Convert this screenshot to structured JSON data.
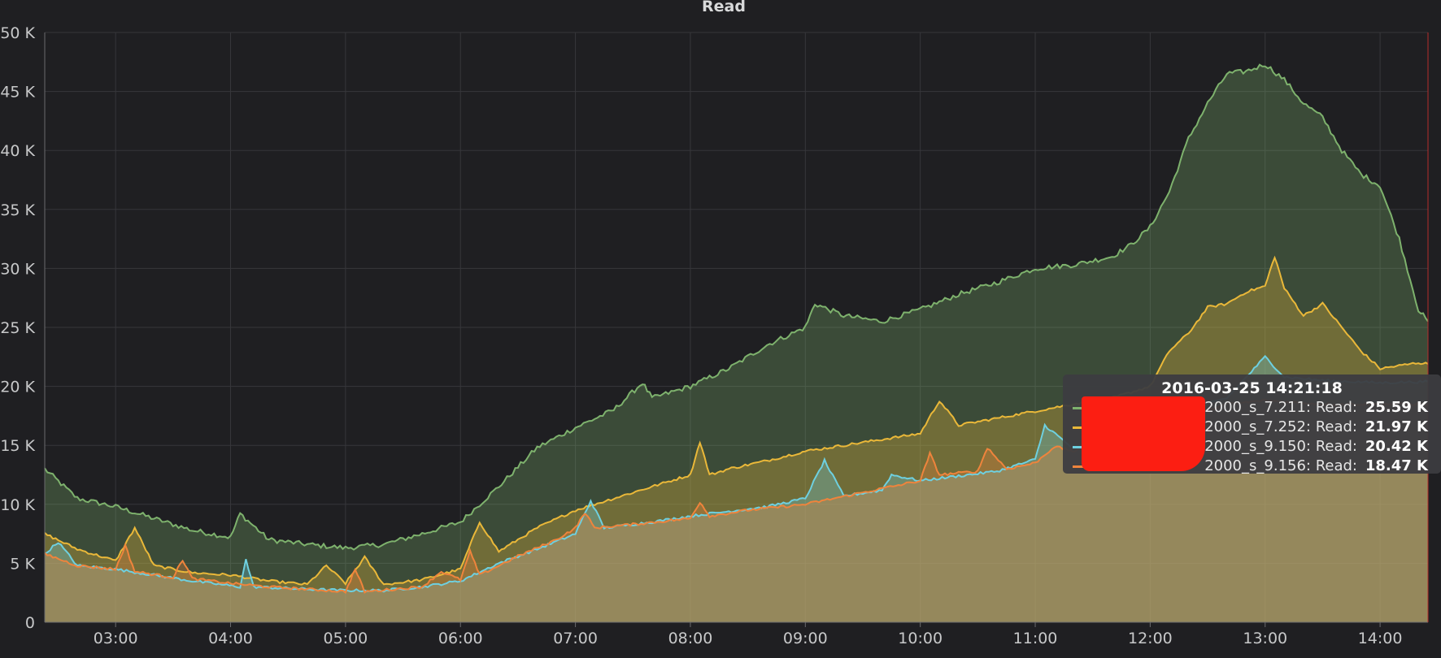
{
  "panel": {
    "title": "Read"
  },
  "chart_data": {
    "type": "area",
    "title": "Read",
    "ylim": [
      0,
      50000
    ],
    "y_ticks": [
      "0",
      "5 K",
      "10 K",
      "15 K",
      "20 K",
      "25 K",
      "30 K",
      "35 K",
      "40 K",
      "45 K",
      "50 K"
    ],
    "x_ticks": [
      "03:00",
      "04:00",
      "05:00",
      "06:00",
      "07:00",
      "08:00",
      "09:00",
      "10:00",
      "11:00",
      "12:00",
      "13:00",
      "14:00"
    ],
    "xlim": [
      "02:23",
      "14:25"
    ],
    "grid": true,
    "stacked": false,
    "series": [
      {
        "color": "#7eb26d",
        "points": [
          [
            "02:23",
            13000
          ],
          [
            "02:40",
            10500
          ],
          [
            "03:00",
            9800
          ],
          [
            "03:20",
            8800
          ],
          [
            "03:40",
            7800
          ],
          [
            "04:00",
            7200
          ],
          [
            "04:05",
            9200
          ],
          [
            "04:20",
            7000
          ],
          [
            "04:40",
            6600
          ],
          [
            "05:00",
            6300
          ],
          [
            "05:20",
            6600
          ],
          [
            "05:40",
            7500
          ],
          [
            "06:00",
            8500
          ],
          [
            "06:20",
            11500
          ],
          [
            "06:40",
            14800
          ],
          [
            "07:00",
            16500
          ],
          [
            "07:20",
            18000
          ],
          [
            "07:35",
            20300
          ],
          [
            "07:40",
            19000
          ],
          [
            "08:00",
            20000
          ],
          [
            "08:20",
            21500
          ],
          [
            "08:40",
            23500
          ],
          [
            "09:00",
            25000
          ],
          [
            "09:05",
            27000
          ],
          [
            "09:20",
            26000
          ],
          [
            "09:40",
            25500
          ],
          [
            "10:00",
            26500
          ],
          [
            "10:20",
            27800
          ],
          [
            "10:40",
            28800
          ],
          [
            "11:00",
            30000
          ],
          [
            "11:20",
            30300
          ],
          [
            "11:40",
            31000
          ],
          [
            "11:50",
            32000
          ],
          [
            "12:00",
            33500
          ],
          [
            "12:10",
            36500
          ],
          [
            "12:20",
            41000
          ],
          [
            "12:30",
            44000
          ],
          [
            "12:40",
            46500
          ],
          [
            "12:50",
            46700
          ],
          [
            "13:00",
            47300
          ],
          [
            "13:10",
            46000
          ],
          [
            "13:20",
            44000
          ],
          [
            "13:30",
            42800
          ],
          [
            "13:40",
            40000
          ],
          [
            "13:50",
            38000
          ],
          [
            "14:00",
            37000
          ],
          [
            "14:10",
            32500
          ],
          [
            "14:20",
            26500
          ],
          [
            "14:25",
            25500
          ]
        ]
      },
      {
        "color": "#eab839",
        "points": [
          [
            "02:23",
            7500
          ],
          [
            "02:40",
            6200
          ],
          [
            "03:00",
            5200
          ],
          [
            "03:10",
            8000
          ],
          [
            "03:20",
            4800
          ],
          [
            "03:40",
            4200
          ],
          [
            "04:00",
            4000
          ],
          [
            "04:20",
            3500
          ],
          [
            "04:40",
            3200
          ],
          [
            "04:50",
            4800
          ],
          [
            "05:00",
            3300
          ],
          [
            "05:10",
            5500
          ],
          [
            "05:20",
            3200
          ],
          [
            "05:40",
            3600
          ],
          [
            "06:00",
            4500
          ],
          [
            "06:10",
            8500
          ],
          [
            "06:20",
            6000
          ],
          [
            "06:40",
            8000
          ],
          [
            "07:00",
            9500
          ],
          [
            "07:20",
            10500
          ],
          [
            "07:40",
            11500
          ],
          [
            "08:00",
            12500
          ],
          [
            "08:05",
            15300
          ],
          [
            "08:10",
            12500
          ],
          [
            "08:20",
            13000
          ],
          [
            "08:40",
            13700
          ],
          [
            "09:00",
            14500
          ],
          [
            "09:20",
            15000
          ],
          [
            "09:40",
            15500
          ],
          [
            "10:00",
            16000
          ],
          [
            "10:10",
            18800
          ],
          [
            "10:20",
            16700
          ],
          [
            "10:40",
            17300
          ],
          [
            "11:00",
            17900
          ],
          [
            "11:20",
            18500
          ],
          [
            "11:40",
            19000
          ],
          [
            "12:00",
            20000
          ],
          [
            "12:10",
            23000
          ],
          [
            "12:20",
            24500
          ],
          [
            "12:30",
            26700
          ],
          [
            "12:40",
            27000
          ],
          [
            "12:50",
            28000
          ],
          [
            "13:00",
            28500
          ],
          [
            "13:05",
            31000
          ],
          [
            "13:10",
            28300
          ],
          [
            "13:20",
            26000
          ],
          [
            "13:30",
            27000
          ],
          [
            "13:40",
            25000
          ],
          [
            "13:50",
            23000
          ],
          [
            "14:00",
            21500
          ],
          [
            "14:20",
            22000
          ],
          [
            "14:25",
            21900
          ]
        ]
      },
      {
        "color": "#6ed0e0",
        "points": [
          [
            "02:23",
            5800
          ],
          [
            "02:30",
            6800
          ],
          [
            "02:40",
            4800
          ],
          [
            "03:00",
            4500
          ],
          [
            "03:20",
            4000
          ],
          [
            "03:40",
            3500
          ],
          [
            "04:05",
            3000
          ],
          [
            "04:08",
            5300
          ],
          [
            "04:12",
            3000
          ],
          [
            "04:40",
            2800
          ],
          [
            "05:00",
            2700
          ],
          [
            "05:20",
            2700
          ],
          [
            "05:40",
            3000
          ],
          [
            "06:00",
            3500
          ],
          [
            "06:20",
            5000
          ],
          [
            "06:40",
            6200
          ],
          [
            "07:00",
            7500
          ],
          [
            "07:08",
            10300
          ],
          [
            "07:15",
            8000
          ],
          [
            "07:40",
            8500
          ],
          [
            "08:00",
            9000
          ],
          [
            "08:20",
            9400
          ],
          [
            "08:40",
            9800
          ],
          [
            "09:00",
            10500
          ],
          [
            "09:10",
            13700
          ],
          [
            "09:20",
            10700
          ],
          [
            "09:40",
            11200
          ],
          [
            "09:45",
            12500
          ],
          [
            "10:00",
            12000
          ],
          [
            "10:20",
            12400
          ],
          [
            "10:40",
            12800
          ],
          [
            "11:00",
            13800
          ],
          [
            "11:05",
            16700
          ],
          [
            "11:20",
            14700
          ],
          [
            "11:40",
            15500
          ],
          [
            "12:00",
            16700
          ],
          [
            "12:20",
            18000
          ],
          [
            "12:40",
            19000
          ],
          [
            "13:00",
            22500
          ],
          [
            "13:10",
            20800
          ],
          [
            "13:30",
            20500
          ],
          [
            "14:00",
            20300
          ],
          [
            "14:25",
            20400
          ]
        ]
      },
      {
        "color": "#ef843c",
        "points": [
          [
            "02:23",
            5800
          ],
          [
            "02:40",
            4800
          ],
          [
            "03:00",
            4500
          ],
          [
            "03:05",
            6500
          ],
          [
            "03:10",
            4300
          ],
          [
            "03:30",
            3800
          ],
          [
            "03:35",
            5300
          ],
          [
            "03:40",
            3700
          ],
          [
            "04:00",
            3300
          ],
          [
            "04:20",
            3000
          ],
          [
            "04:40",
            2800
          ],
          [
            "05:00",
            2600
          ],
          [
            "05:05",
            4500
          ],
          [
            "05:10",
            2600
          ],
          [
            "05:40",
            3000
          ],
          [
            "05:50",
            4300
          ],
          [
            "06:00",
            3600
          ],
          [
            "06:05",
            6000
          ],
          [
            "06:10",
            4000
          ],
          [
            "06:30",
            5600
          ],
          [
            "06:50",
            7000
          ],
          [
            "07:00",
            8000
          ],
          [
            "07:05",
            9300
          ],
          [
            "07:10",
            8000
          ],
          [
            "07:30",
            8300
          ],
          [
            "08:00",
            8800
          ],
          [
            "08:05",
            10200
          ],
          [
            "08:10",
            9000
          ],
          [
            "08:30",
            9500
          ],
          [
            "09:00",
            10000
          ],
          [
            "09:30",
            11000
          ],
          [
            "10:00",
            12000
          ],
          [
            "10:05",
            14300
          ],
          [
            "10:10",
            12500
          ],
          [
            "10:30",
            12800
          ],
          [
            "10:35",
            14800
          ],
          [
            "10:45",
            13000
          ],
          [
            "11:00",
            13500
          ],
          [
            "11:10",
            14900
          ],
          [
            "11:20",
            14500
          ],
          [
            "11:40",
            15500
          ],
          [
            "12:00",
            16500
          ],
          [
            "12:20",
            17500
          ],
          [
            "12:40",
            18500
          ],
          [
            "13:00",
            18800
          ],
          [
            "13:30",
            18500
          ],
          [
            "14:00",
            18500
          ],
          [
            "14:25",
            18500
          ]
        ]
      }
    ]
  },
  "tooltip": {
    "time": "2016-03-25 14:21:18",
    "rows": [
      {
        "name": "2000_s_7.211: Read:",
        "value": "25.59 K",
        "color": "#7eb26d"
      },
      {
        "name": "2000_s_7.252: Read:",
        "value": "21.97 K",
        "color": "#eab839"
      },
      {
        "name": "2000_s_9.150: Read:",
        "value": "20.42 K",
        "color": "#6ed0e0"
      },
      {
        "name": "2000_s_9.156: Read:",
        "value": "18.47 K",
        "color": "#ef843c"
      }
    ]
  }
}
